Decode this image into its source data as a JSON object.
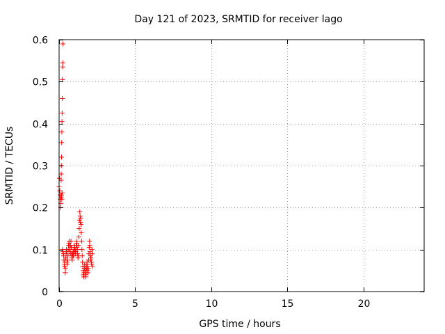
{
  "chart_data": {
    "type": "scatter",
    "title": "Day 121 of 2023, SRMTID for receiver lago",
    "xlabel": "GPS time / hours",
    "ylabel": "SRMTID / TECUs",
    "xlim": [
      0,
      24
    ],
    "ylim": [
      0,
      0.6
    ],
    "xticks": [
      0,
      5,
      10,
      15,
      20
    ],
    "xtick_labels": [
      "0",
      "5",
      "10",
      "15",
      "20"
    ],
    "yticks": [
      0,
      0.1,
      0.2,
      0.3,
      0.4,
      0.5,
      0.6
    ],
    "ytick_labels": [
      "0",
      "0.1",
      "0.2",
      "0.3",
      "0.4",
      "0.5",
      "0.6"
    ],
    "grid": true,
    "marker": "+",
    "color": "#ff0000",
    "series": [
      {
        "name": "SRMTID",
        "points": [
          [
            0.0,
            0.25
          ],
          [
            0.02,
            0.27
          ],
          [
            0.04,
            0.24
          ],
          [
            0.06,
            0.23
          ],
          [
            0.08,
            0.22
          ],
          [
            0.1,
            0.2
          ],
          [
            0.12,
            0.21
          ],
          [
            0.13,
            0.265
          ],
          [
            0.14,
            0.28
          ],
          [
            0.15,
            0.3
          ],
          [
            0.16,
            0.32
          ],
          [
            0.17,
            0.355
          ],
          [
            0.18,
            0.38
          ],
          [
            0.19,
            0.405
          ],
          [
            0.2,
            0.425
          ],
          [
            0.21,
            0.46
          ],
          [
            0.22,
            0.505
          ],
          [
            0.23,
            0.535
          ],
          [
            0.24,
            0.545
          ],
          [
            0.25,
            0.59
          ],
          [
            0.14,
            0.225
          ],
          [
            0.16,
            0.23
          ],
          [
            0.18,
            0.22
          ],
          [
            0.2,
            0.235
          ],
          [
            0.22,
            0.1
          ],
          [
            0.25,
            0.095
          ],
          [
            0.28,
            0.09
          ],
          [
            0.3,
            0.085
          ],
          [
            0.32,
            0.075
          ],
          [
            0.34,
            0.06
          ],
          [
            0.36,
            0.065
          ],
          [
            0.38,
            0.07
          ],
          [
            0.4,
            0.045
          ],
          [
            0.42,
            0.055
          ],
          [
            0.44,
            0.08
          ],
          [
            0.46,
            0.09
          ],
          [
            0.48,
            0.1
          ],
          [
            0.5,
            0.095
          ],
          [
            0.52,
            0.07
          ],
          [
            0.54,
            0.065
          ],
          [
            0.56,
            0.075
          ],
          [
            0.58,
            0.085
          ],
          [
            0.6,
            0.1
          ],
          [
            0.62,
            0.11
          ],
          [
            0.64,
            0.115
          ],
          [
            0.66,
            0.12
          ],
          [
            0.68,
            0.11
          ],
          [
            0.7,
            0.1
          ],
          [
            0.72,
            0.095
          ],
          [
            0.74,
            0.09
          ],
          [
            0.76,
            0.11
          ],
          [
            0.78,
            0.12
          ],
          [
            0.8,
            0.105
          ],
          [
            0.82,
            0.09
          ],
          [
            0.84,
            0.08
          ],
          [
            0.86,
            0.075
          ],
          [
            0.88,
            0.085
          ],
          [
            0.9,
            0.09
          ],
          [
            0.92,
            0.095
          ],
          [
            0.94,
            0.085
          ],
          [
            0.96,
            0.09
          ],
          [
            0.98,
            0.1
          ],
          [
            1.0,
            0.11
          ],
          [
            1.02,
            0.105
          ],
          [
            1.04,
            0.095
          ],
          [
            1.06,
            0.1
          ],
          [
            1.08,
            0.09
          ],
          [
            1.1,
            0.095
          ],
          [
            1.12,
            0.11
          ],
          [
            1.14,
            0.12
          ],
          [
            1.16,
            0.115
          ],
          [
            1.18,
            0.105
          ],
          [
            1.2,
            0.1
          ],
          [
            1.22,
            0.09
          ],
          [
            1.24,
            0.08
          ],
          [
            1.26,
            0.085
          ],
          [
            1.28,
            0.11
          ],
          [
            1.3,
            0.13
          ],
          [
            1.32,
            0.15
          ],
          [
            1.34,
            0.17
          ],
          [
            1.36,
            0.19
          ],
          [
            1.38,
            0.18
          ],
          [
            1.4,
            0.165
          ],
          [
            1.42,
            0.175
          ],
          [
            1.44,
            0.16
          ],
          [
            1.46,
            0.14
          ],
          [
            1.48,
            0.12
          ],
          [
            1.5,
            0.1
          ],
          [
            1.52,
            0.085
          ],
          [
            1.54,
            0.07
          ],
          [
            1.56,
            0.06
          ],
          [
            1.58,
            0.05
          ],
          [
            1.6,
            0.04
          ],
          [
            1.62,
            0.035
          ],
          [
            1.64,
            0.045
          ],
          [
            1.66,
            0.055
          ],
          [
            1.68,
            0.065
          ],
          [
            1.7,
            0.06
          ],
          [
            1.72,
            0.05
          ],
          [
            1.74,
            0.04
          ],
          [
            1.76,
            0.035
          ],
          [
            1.78,
            0.045
          ],
          [
            1.8,
            0.055
          ],
          [
            1.82,
            0.065
          ],
          [
            1.84,
            0.07
          ],
          [
            1.86,
            0.06
          ],
          [
            1.88,
            0.05
          ],
          [
            1.9,
            0.045
          ],
          [
            1.92,
            0.055
          ],
          [
            1.94,
            0.075
          ],
          [
            1.96,
            0.09
          ],
          [
            1.98,
            0.105
          ],
          [
            2.0,
            0.12
          ],
          [
            2.02,
            0.11
          ],
          [
            2.04,
            0.095
          ],
          [
            2.06,
            0.085
          ],
          [
            2.08,
            0.075
          ],
          [
            2.1,
            0.08
          ],
          [
            2.12,
            0.07
          ],
          [
            2.14,
            0.065
          ],
          [
            2.16,
            0.1
          ],
          [
            2.18,
            0.09
          ],
          [
            2.2,
            0.06
          ]
        ]
      }
    ]
  }
}
